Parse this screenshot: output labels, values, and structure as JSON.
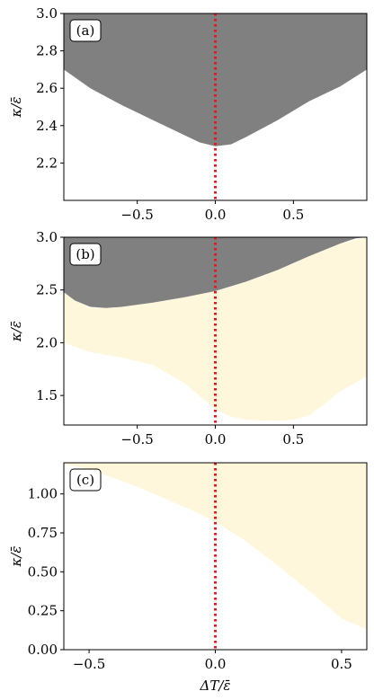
{
  "chart_data": [
    {
      "type": "area",
      "panel_label": "(a)",
      "xlabel": "",
      "ylabel": "κ/ε̄",
      "xlim": [
        -0.97,
        0.97
      ],
      "ylim": [
        2.0,
        3.0
      ],
      "xticks": [
        -0.5,
        0.0,
        0.5
      ],
      "xtick_labels": [
        "−0.5",
        "0.0",
        "0.5"
      ],
      "yticks": [
        2.2,
        2.4,
        2.6,
        2.8,
        3.0
      ],
      "ytick_labels": [
        "2.2",
        "2.4",
        "2.6",
        "2.8",
        "3.0"
      ],
      "grid": false,
      "vline": {
        "x": 0.0,
        "color": "#e8151b",
        "style": "dotted"
      },
      "regions": [
        {
          "color": "#808080",
          "x": [
            -0.97,
            -0.8,
            -0.6,
            -0.4,
            -0.2,
            -0.1,
            0.0,
            0.1,
            0.2,
            0.4,
            0.6,
            0.8,
            0.97
          ],
          "lower": [
            2.7,
            2.6,
            2.51,
            2.43,
            2.35,
            2.31,
            2.29,
            2.3,
            2.34,
            2.43,
            2.53,
            2.61,
            2.7
          ],
          "upper": [
            3.0,
            3.0,
            3.0,
            3.0,
            3.0,
            3.0,
            3.0,
            3.0,
            3.0,
            3.0,
            3.0,
            3.0,
            3.0
          ]
        }
      ]
    },
    {
      "type": "area",
      "panel_label": "(b)",
      "xlabel": "",
      "ylabel": "κ/ε̄",
      "xlim": [
        -0.97,
        0.97
      ],
      "ylim": [
        1.22,
        3.0
      ],
      "xticks": [
        -0.5,
        0.0,
        0.5
      ],
      "xtick_labels": [
        "−0.5",
        "0.0",
        "0.5"
      ],
      "yticks": [
        1.5,
        2.0,
        2.5,
        3.0
      ],
      "ytick_labels": [
        "1.5",
        "2.0",
        "2.5",
        "3.0"
      ],
      "grid": false,
      "vline": {
        "x": 0.0,
        "color": "#e8151b",
        "style": "dotted"
      },
      "regions": [
        {
          "color": "#fff7dc",
          "x": [
            -0.97,
            -0.8,
            -0.6,
            -0.4,
            -0.2,
            0.0,
            0.1,
            0.2,
            0.3,
            0.4,
            0.5,
            0.6,
            0.7,
            0.8,
            0.97
          ],
          "lower": [
            2.0,
            1.91,
            1.86,
            1.79,
            1.62,
            1.37,
            1.3,
            1.27,
            1.26,
            1.26,
            1.27,
            1.31,
            1.42,
            1.54,
            1.68
          ],
          "upper": [
            2.48,
            2.33,
            2.34,
            2.38,
            2.43,
            2.49,
            2.53,
            2.58,
            2.63,
            2.69,
            2.75,
            2.82,
            2.88,
            2.94,
            3.0
          ]
        },
        {
          "color": "#808080",
          "x": [
            -0.97,
            -0.9,
            -0.8,
            -0.7,
            -0.6,
            -0.4,
            -0.2,
            0.0,
            0.2,
            0.4,
            0.6,
            0.8,
            0.9,
            0.97
          ],
          "lower": [
            2.48,
            2.4,
            2.34,
            2.33,
            2.34,
            2.38,
            2.43,
            2.49,
            2.58,
            2.69,
            2.82,
            2.94,
            2.99,
            3.0
          ],
          "upper": [
            3.0,
            3.0,
            3.0,
            3.0,
            3.0,
            3.0,
            3.0,
            3.0,
            3.0,
            3.0,
            3.0,
            3.0,
            3.0,
            3.0
          ]
        }
      ]
    },
    {
      "type": "area",
      "panel_label": "(c)",
      "xlabel": "ΔT/ε̄",
      "ylabel": "κ/ε̄",
      "xlim": [
        -0.6,
        0.6
      ],
      "ylim": [
        0.0,
        1.2
      ],
      "xticks": [
        -0.5,
        0.0,
        0.5
      ],
      "xtick_labels": [
        "−0.5",
        "0.0",
        "0.5"
      ],
      "yticks": [
        0.0,
        0.25,
        0.5,
        0.75,
        1.0
      ],
      "ytick_labels": [
        "0.00",
        "0.25",
        "0.50",
        "0.75",
        "1.00"
      ],
      "grid": false,
      "vline": {
        "x": 0.0,
        "color": "#e8151b",
        "style": "dotted"
      },
      "regions": [
        {
          "color": "#fff7dc",
          "x": [
            -0.6,
            -0.5,
            -0.4,
            -0.3,
            -0.2,
            -0.1,
            0.0,
            0.1,
            0.2,
            0.3,
            0.4,
            0.5,
            0.6
          ],
          "lower": [
            1.19,
            1.16,
            1.1,
            1.04,
            0.97,
            0.9,
            0.82,
            0.72,
            0.6,
            0.47,
            0.34,
            0.2,
            0.13
          ],
          "upper": [
            1.2,
            1.2,
            1.2,
            1.2,
            1.2,
            1.2,
            1.2,
            1.2,
            1.2,
            1.2,
            1.2,
            1.2,
            1.2
          ]
        }
      ]
    }
  ]
}
